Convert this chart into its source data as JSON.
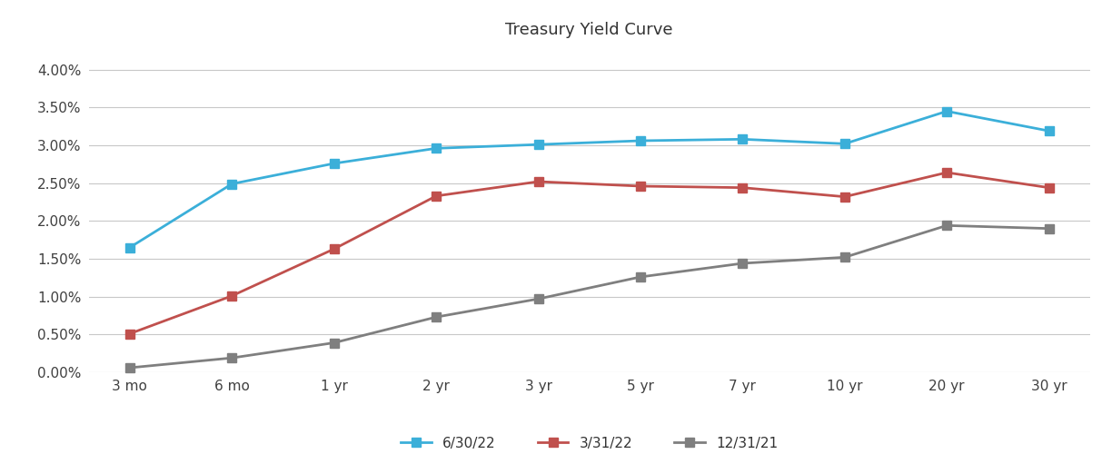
{
  "title": "Treasury Yield Curve",
  "x_labels": [
    "3 mo",
    "6 mo",
    "1 yr",
    "2 yr",
    "3 yr",
    "5 yr",
    "7 yr",
    "10 yr",
    "20 yr",
    "30 yr"
  ],
  "series": [
    {
      "label": "6/30/22",
      "color": "#3BAFD9",
      "values": [
        1.65,
        2.49,
        2.76,
        2.96,
        3.01,
        3.06,
        3.08,
        3.02,
        3.45,
        3.19
      ]
    },
    {
      "label": "3/31/22",
      "color": "#C0504D",
      "values": [
        0.51,
        1.01,
        1.63,
        2.33,
        2.52,
        2.46,
        2.44,
        2.32,
        2.64,
        2.44
      ]
    },
    {
      "label": "12/31/21",
      "color": "#7F7F7F",
      "values": [
        0.06,
        0.19,
        0.39,
        0.73,
        0.97,
        1.26,
        1.44,
        1.52,
        1.94,
        1.9
      ]
    }
  ],
  "ylim_min": 0.0,
  "ylim_max": 4.2,
  "ytick_vals": [
    0.0,
    0.5,
    1.0,
    1.5,
    2.0,
    2.5,
    3.0,
    3.5,
    4.0
  ],
  "ytick_labels": [
    "0.00%",
    "0.50%",
    "1.00%",
    "1.50%",
    "2.00%",
    "2.50%",
    "3.00%",
    "3.50%",
    "4.00%"
  ],
  "background_color": "#FFFFFF",
  "grid_color": "#C8C8C8",
  "title_fontsize": 13,
  "legend_fontsize": 11,
  "tick_fontsize": 11,
  "marker": "s",
  "marker_size": 7,
  "linewidth": 2.0
}
